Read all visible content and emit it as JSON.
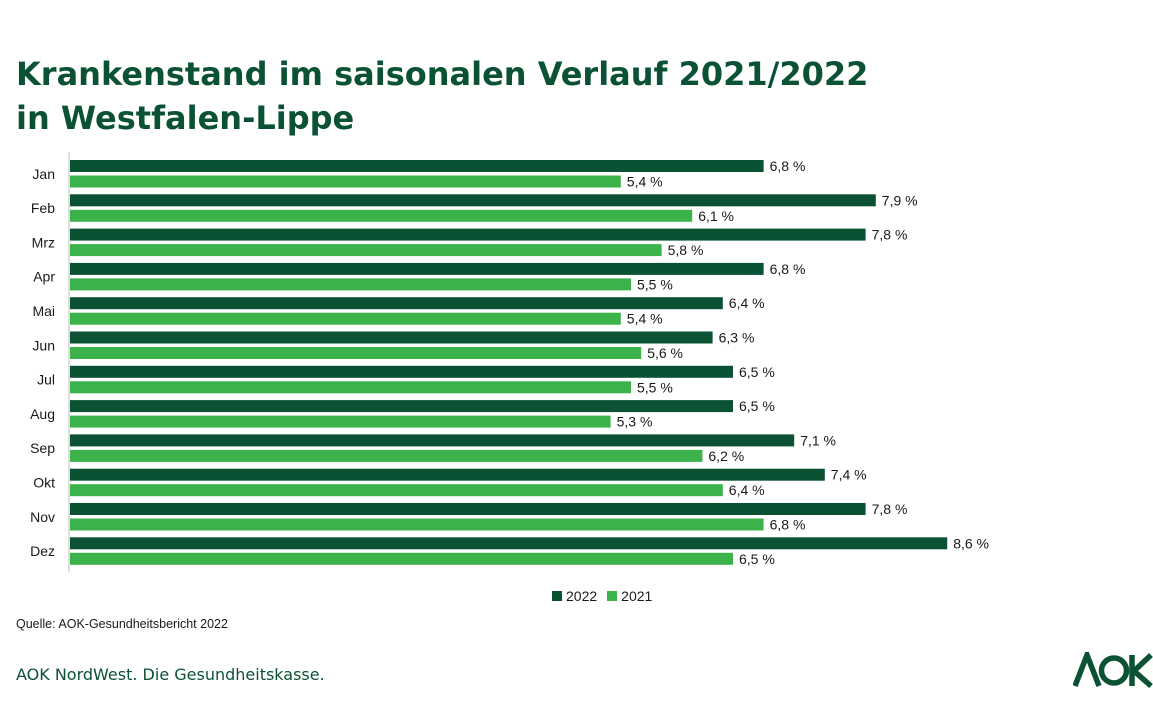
{
  "title": {
    "line1": "Krankenstand im saisonalen Verlauf 2021/2022",
    "line2": "in Westfalen-Lippe"
  },
  "source": "Quelle: AOK-Gesundheitsbericht  2022",
  "footer": "AOK NordWest. Die Gesundheitskasse.",
  "logo_text": "AOK",
  "colors": {
    "series_2022": "#0b5234",
    "series_2021": "#3cb34a",
    "title": "#0b5234"
  },
  "chart_data": {
    "type": "bar",
    "orientation": "horizontal",
    "categories": [
      "Jan",
      "Feb",
      "Mrz",
      "Apr",
      "Mai",
      "Jun",
      "Jul",
      "Aug",
      "Sep",
      "Okt",
      "Nov",
      "Dez"
    ],
    "series": [
      {
        "name": "2022",
        "values": [
          6.8,
          7.9,
          7.8,
          6.8,
          6.4,
          6.3,
          6.5,
          6.5,
          7.1,
          7.4,
          7.8,
          8.6
        ],
        "labels": [
          "6,8 %",
          "7,9 %",
          "7,8 %",
          "6,8 %",
          "6,4 %",
          "6,3 %",
          "6,5 %",
          "6,5 %",
          "7,1 %",
          "7,4 %",
          "7,8 %",
          "8,6 %"
        ]
      },
      {
        "name": "2021",
        "values": [
          5.4,
          6.1,
          5.8,
          5.5,
          5.4,
          5.6,
          5.5,
          5.3,
          6.2,
          6.4,
          6.8,
          6.5
        ],
        "labels": [
          "5,4 %",
          "6,1 %",
          "5,8 %",
          "5,5 %",
          "5,4 %",
          "5,6 %",
          "5,5 %",
          "5,3 %",
          "6,2 %",
          "6,4 %",
          "6,8 %",
          "6,5 %"
        ]
      }
    ],
    "unit": "%",
    "xlim": [
      0,
      8.6
    ],
    "legend_position": "bottom",
    "grid": false
  }
}
